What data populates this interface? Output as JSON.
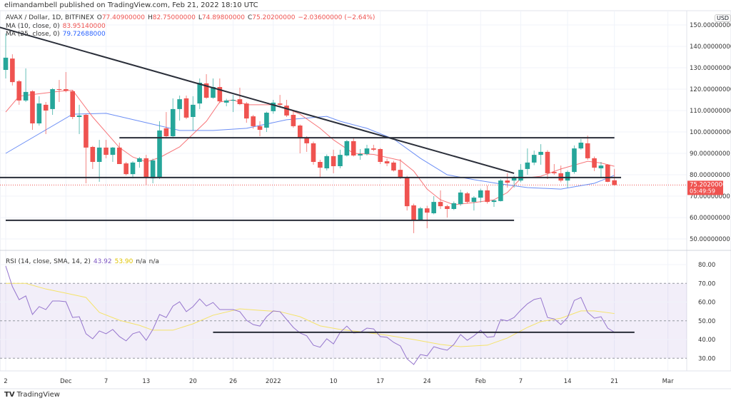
{
  "published": "elimandambell published on TradingView.com, Feb 21, 2022 18:10 UTC",
  "legend": {
    "symbol": "AVAX / Dollar, 1D, BITFINEX",
    "open_label": "O",
    "open": "77.40900000",
    "high_label": "H",
    "high": "82.75000000",
    "low_label": "L",
    "low": "74.89800000",
    "close_label": "C",
    "close": "75.20200000",
    "change": "−2.03600000 (−2.64%)",
    "ma10_label": "MA (10, close, 0)",
    "ma10_value": "83.95140000",
    "ma25_label": "MA (25, close, 0)",
    "ma25_value": "79.72688000"
  },
  "rsi_legend": {
    "label": "RSI (14, close, SMA, 14, 2)",
    "rsi": "43.92",
    "sma": "53.90",
    "na1": "n/a",
    "na2": "n/a"
  },
  "currency": "USD",
  "price_axis": [
    "150.00000000",
    "140.00000000",
    "130.00000000",
    "120.00000000",
    "110.00000000",
    "100.00000000",
    "90.00000000",
    "80.00000000",
    "70.00000000",
    "60.00000000",
    "50.00000000"
  ],
  "price_ticks": [
    150,
    140,
    130,
    120,
    110,
    100,
    90,
    80,
    70,
    60,
    50
  ],
  "current_price": {
    "value": 75.202,
    "label": "75.20200000",
    "countdown": "05:49:59"
  },
  "rsi_axis": {
    "ticks": [
      80,
      70,
      60,
      50,
      40,
      30
    ],
    "labels": [
      "80.00",
      "70.00",
      "60.00",
      "50.00",
      "40.00",
      "30.00"
    ],
    "band": [
      30,
      70
    ]
  },
  "date_axis": [
    {
      "date": "2021-11-22",
      "label": "2"
    },
    {
      "date": "2021-12-01",
      "label": "Dec"
    },
    {
      "date": "2021-12-07",
      "label": "7"
    },
    {
      "date": "2021-12-13",
      "label": "13"
    },
    {
      "date": "2021-12-20",
      "label": "20"
    },
    {
      "date": "2021-12-26",
      "label": "26"
    },
    {
      "date": "2022-01-01",
      "label": "2022"
    },
    {
      "date": "2022-01-10",
      "label": "10"
    },
    {
      "date": "2022-01-17",
      "label": "17"
    },
    {
      "date": "2022-01-24",
      "label": "24"
    },
    {
      "date": "2022-02-01",
      "label": "Feb"
    },
    {
      "date": "2022-02-07",
      "label": "7"
    },
    {
      "date": "2022-02-14",
      "label": "14"
    },
    {
      "date": "2022-02-21",
      "label": "21"
    },
    {
      "date": "2022-03-01",
      "label": "Mar"
    }
  ],
  "colors": {
    "up": "#26a69a",
    "down": "#ef5350",
    "ma10": "#f7767a",
    "ma25": "#6b8ef5",
    "rsi": "#9575cd",
    "rsi_sma": "#f5e36a",
    "trendline": "#2a2e39"
  },
  "chart_data": {
    "type": "candlestick",
    "candles_fields": [
      "date",
      "open",
      "high",
      "low",
      "close"
    ],
    "candles": [
      [
        "2021-11-22",
        129,
        146,
        125,
        134.7
      ],
      [
        "2021-11-23",
        134.3,
        136.3,
        121.7,
        123.3
      ],
      [
        "2021-11-24",
        123.7,
        124.3,
        112.7,
        114.7
      ],
      [
        "2021-11-25",
        114.7,
        129.7,
        114,
        118.7
      ],
      [
        "2021-11-26",
        119,
        119.5,
        101,
        104
      ],
      [
        "2021-11-27",
        104,
        116.7,
        103,
        113.3
      ],
      [
        "2021-11-28",
        112.7,
        114,
        99,
        110
      ],
      [
        "2021-11-29",
        110.7,
        120.5,
        108,
        120
      ],
      [
        "2021-11-30",
        120,
        124.3,
        114,
        119.7
      ],
      [
        "2021-12-01",
        120,
        128,
        118.5,
        119.3
      ],
      [
        "2021-12-02",
        119,
        119.5,
        106,
        107
      ],
      [
        "2021-12-03",
        107,
        112.7,
        99,
        107.7
      ],
      [
        "2021-12-04",
        108,
        108.5,
        76,
        92.7
      ],
      [
        "2021-12-05",
        93,
        93.5,
        82.7,
        86
      ],
      [
        "2021-12-06",
        86,
        96.3,
        76.7,
        92.7
      ],
      [
        "2021-12-07",
        92.7,
        96.3,
        87.7,
        89.3
      ],
      [
        "2021-12-08",
        89.3,
        93,
        86,
        92.7
      ],
      [
        "2021-12-09",
        92.7,
        95,
        85,
        85
      ],
      [
        "2021-12-10",
        85.3,
        86,
        79.7,
        80.3
      ],
      [
        "2021-12-11",
        80.3,
        86.3,
        78.3,
        85.7
      ],
      [
        "2021-12-12",
        86,
        88.3,
        83.3,
        87.7
      ],
      [
        "2021-12-13",
        87.7,
        89.3,
        75.3,
        78.7
      ],
      [
        "2021-12-14",
        78.3,
        87.5,
        76,
        86.7
      ],
      [
        "2021-12-15",
        78.7,
        105,
        78,
        100.7
      ],
      [
        "2021-12-16",
        101.7,
        109.3,
        97.5,
        98
      ],
      [
        "2021-12-17",
        98,
        115.7,
        97.5,
        110.7
      ],
      [
        "2021-12-18",
        110.7,
        117,
        105.3,
        115.3
      ],
      [
        "2021-12-19",
        115.7,
        117,
        106,
        106.7
      ],
      [
        "2021-12-20",
        107,
        116.7,
        100.7,
        112.7
      ],
      [
        "2021-12-21",
        113.3,
        125,
        110.7,
        123
      ],
      [
        "2021-12-22",
        122.7,
        127,
        115.5,
        116
      ],
      [
        "2021-12-23",
        116,
        125,
        115.5,
        121
      ],
      [
        "2021-12-24",
        121,
        125,
        113.5,
        114.3
      ],
      [
        "2021-12-25",
        113.7,
        115.5,
        112,
        114.7
      ],
      [
        "2021-12-26",
        114.6,
        117.3,
        109.3,
        115
      ],
      [
        "2021-12-27",
        115.3,
        120.7,
        112.5,
        113
      ],
      [
        "2021-12-28",
        113.3,
        114,
        104.3,
        106.3
      ],
      [
        "2021-12-29",
        107.3,
        108,
        101.5,
        102.7
      ],
      [
        "2021-12-30",
        102.7,
        105,
        98,
        101
      ],
      [
        "2021-12-31",
        102,
        109.5,
        100,
        109
      ],
      [
        "2022-01-01",
        109.7,
        115,
        108.5,
        113.7
      ],
      [
        "2022-01-02",
        113.3,
        117.3,
        112,
        112.7
      ],
      [
        "2022-01-03",
        112.3,
        115,
        107,
        107.7
      ],
      [
        "2022-01-04",
        108,
        109.7,
        102,
        102.7
      ],
      [
        "2022-01-05",
        103,
        103.5,
        90,
        97
      ],
      [
        "2022-01-06",
        97,
        98,
        90.7,
        94.7
      ],
      [
        "2022-01-07",
        94.7,
        95.5,
        84.7,
        86
      ],
      [
        "2022-01-08",
        86,
        87,
        79,
        83.3
      ],
      [
        "2022-01-09",
        83,
        89.5,
        82,
        88.7
      ],
      [
        "2022-01-10",
        88.7,
        91.7,
        80.7,
        84
      ],
      [
        "2022-01-11",
        84,
        91.7,
        83,
        89.3
      ],
      [
        "2022-01-12",
        89,
        96.3,
        88.5,
        95.7
      ],
      [
        "2022-01-13",
        95.7,
        97,
        88.5,
        89
      ],
      [
        "2022-01-14",
        89,
        92,
        87,
        89.7
      ],
      [
        "2022-01-15",
        89.7,
        94,
        89,
        92.3
      ],
      [
        "2022-01-16",
        92.3,
        94,
        91,
        91.7
      ],
      [
        "2022-01-17",
        92,
        92.5,
        85,
        86
      ],
      [
        "2022-01-18",
        86.3,
        87.5,
        84,
        85.3
      ],
      [
        "2022-01-19",
        85.7,
        86.5,
        81.5,
        82
      ],
      [
        "2022-01-20",
        82.3,
        87.3,
        78,
        78.7
      ],
      [
        "2022-01-21",
        78.7,
        79.5,
        63.3,
        65.3
      ],
      [
        "2022-01-22",
        65.7,
        66.5,
        52.7,
        59
      ],
      [
        "2022-01-23",
        59,
        65,
        58.5,
        64.3
      ],
      [
        "2022-01-24",
        64.3,
        65.5,
        55,
        62.3
      ],
      [
        "2022-01-25",
        62,
        70,
        61.5,
        67.3
      ],
      [
        "2022-01-26",
        67.3,
        72.7,
        64,
        65.3
      ],
      [
        "2022-01-27",
        65.3,
        66,
        60,
        64
      ],
      [
        "2022-01-28",
        64,
        67.5,
        63.5,
        66.7
      ],
      [
        "2022-01-29",
        66.3,
        73,
        65.5,
        71.7
      ],
      [
        "2022-01-30",
        71.3,
        72,
        66.5,
        67.3
      ],
      [
        "2022-01-31",
        67.3,
        70,
        63.3,
        69.3
      ],
      [
        "2022-02-01",
        69.3,
        73.5,
        67,
        72.7
      ],
      [
        "2022-02-02",
        72.7,
        75,
        66.5,
        67.3
      ],
      [
        "2022-02-03",
        67.3,
        68.5,
        65,
        68
      ],
      [
        "2022-02-04",
        67.7,
        78,
        67.5,
        77.3
      ],
      [
        "2022-02-05",
        77.3,
        80.7,
        74,
        76.3
      ],
      [
        "2022-02-06",
        77.3,
        79.5,
        74,
        78.7
      ],
      [
        "2022-02-07",
        77.3,
        85,
        76.5,
        82.3
      ],
      [
        "2022-02-08",
        82.7,
        92.3,
        80,
        85.7
      ],
      [
        "2022-02-09",
        85.7,
        91.3,
        84.5,
        89.3
      ],
      [
        "2022-02-10",
        89.3,
        94.3,
        84.7,
        90.7
      ],
      [
        "2022-02-11",
        90.7,
        91.5,
        78,
        80.7
      ],
      [
        "2022-02-12",
        81.3,
        85,
        80,
        80.7
      ],
      [
        "2022-02-13",
        80.7,
        84.3,
        76.5,
        77.3
      ],
      [
        "2022-02-14",
        77.3,
        82,
        74,
        81.3
      ],
      [
        "2022-02-15",
        81.3,
        93.7,
        80.5,
        92.3
      ],
      [
        "2022-02-16",
        92.3,
        96.7,
        91.7,
        95
      ],
      [
        "2022-02-17",
        94.7,
        98.3,
        87,
        87.7
      ],
      [
        "2022-02-18",
        87.7,
        88.5,
        81.7,
        83.3
      ],
      [
        "2022-02-19",
        83,
        86,
        78.7,
        84.3
      ],
      [
        "2022-02-20",
        84.7,
        85,
        76.5,
        76.7
      ],
      [
        "2022-02-21",
        77.409,
        82.75,
        74.898,
        75.202
      ]
    ],
    "ma10": [
      [
        "2021-11-22",
        109.3
      ],
      [
        "2021-11-24",
        116.7
      ],
      [
        "2021-11-30",
        119
      ],
      [
        "2021-12-02",
        119.5
      ],
      [
        "2021-12-05",
        107
      ],
      [
        "2021-12-09",
        92.7
      ],
      [
        "2021-12-11",
        88.3
      ],
      [
        "2021-12-13",
        86
      ],
      [
        "2021-12-15",
        88
      ],
      [
        "2021-12-18",
        93
      ],
      [
        "2021-12-19",
        96
      ],
      [
        "2021-12-22",
        105
      ],
      [
        "2021-12-24",
        114
      ],
      [
        "2021-12-26",
        115
      ],
      [
        "2021-12-28",
        112.7
      ],
      [
        "2022-01-01",
        112.7
      ],
      [
        "2022-01-03",
        111
      ],
      [
        "2022-01-05",
        108.3
      ],
      [
        "2022-01-08",
        101.7
      ],
      [
        "2022-01-10",
        96.3
      ],
      [
        "2022-01-13",
        90
      ],
      [
        "2022-01-16",
        89.5
      ],
      [
        "2022-01-20",
        86.7
      ],
      [
        "2022-01-22",
        81.7
      ],
      [
        "2022-01-24",
        73.3
      ],
      [
        "2022-01-26",
        68.3
      ],
      [
        "2022-01-28",
        66
      ],
      [
        "2022-01-31",
        67
      ],
      [
        "2022-02-03",
        68.3
      ],
      [
        "2022-02-05",
        71.7
      ],
      [
        "2022-02-07",
        78.3
      ],
      [
        "2022-02-10",
        79.3
      ],
      [
        "2022-02-13",
        82.7
      ],
      [
        "2022-02-15",
        84.5
      ],
      [
        "2022-02-17",
        86.3
      ],
      [
        "2022-02-19",
        85.5
      ],
      [
        "2022-02-21",
        83.95
      ]
    ],
    "ma25": [
      [
        "2021-11-22",
        90
      ],
      [
        "2021-12-02",
        108.3
      ],
      [
        "2021-12-07",
        108.7
      ],
      [
        "2021-12-18",
        100.7
      ],
      [
        "2021-12-23",
        100.7
      ],
      [
        "2021-12-28",
        101.7
      ],
      [
        "2022-01-03",
        105.7
      ],
      [
        "2022-01-09",
        107.3
      ],
      [
        "2022-01-11",
        105
      ],
      [
        "2022-01-15",
        101.7
      ],
      [
        "2022-01-19",
        96.7
      ],
      [
        "2022-01-23",
        87.7
      ],
      [
        "2022-01-27",
        80
      ],
      [
        "2022-01-31",
        77.7
      ],
      [
        "2022-02-04",
        75.7
      ],
      [
        "2022-02-08",
        74
      ],
      [
        "2022-02-13",
        73.3
      ],
      [
        "2022-02-18",
        76
      ],
      [
        "2022-02-21",
        79.73
      ]
    ],
    "rsi": [
      79.3,
      68.3,
      61.3,
      63.3,
      53.4,
      57.6,
      56,
      60.6,
      60.6,
      60.2,
      51.8,
      52.2,
      43.1,
      40.4,
      44.6,
      43.1,
      45.4,
      41.6,
      39.3,
      43.1,
      44.2,
      39.6,
      45.4,
      53.4,
      51.8,
      57.9,
      60.2,
      54.9,
      57.6,
      61.7,
      57.9,
      59.8,
      56,
      56,
      56,
      54.9,
      50.3,
      48,
      47.2,
      52.2,
      55.3,
      54.9,
      50.7,
      46.5,
      43.5,
      42,
      37,
      35.9,
      40.4,
      37.7,
      43.8,
      47.2,
      43.5,
      43.8,
      46.1,
      45.7,
      41.6,
      41.2,
      38.5,
      36.6,
      29.7,
      26.7,
      32,
      31.3,
      36.2,
      35.1,
      34.3,
      37.4,
      42.7,
      39.6,
      42,
      45,
      41.2,
      41.6,
      50.7,
      50,
      51.8,
      55.7,
      59.1,
      61.4,
      62.2,
      51.8,
      51,
      48,
      51.8,
      60.9,
      62.5,
      54.5,
      51.4,
      52.2,
      46.1,
      43.92
    ],
    "rsi_sma": [
      [
        "2021-11-22",
        70
      ],
      [
        "2021-11-25",
        70
      ],
      [
        "2021-11-28",
        67
      ],
      [
        "2021-12-01",
        64.8
      ],
      [
        "2021-12-04",
        62.5
      ],
      [
        "2021-12-06",
        54.5
      ],
      [
        "2021-12-09",
        50.3
      ],
      [
        "2021-12-12",
        47.6
      ],
      [
        "2021-12-14",
        45
      ],
      [
        "2021-12-17",
        45
      ],
      [
        "2021-12-20",
        48.4
      ],
      [
        "2021-12-23",
        53
      ],
      [
        "2021-12-27",
        56.4
      ],
      [
        "2021-12-30",
        55.6
      ],
      [
        "2022-01-02",
        54.9
      ],
      [
        "2022-01-05",
        52.2
      ],
      [
        "2022-01-08",
        47.3
      ],
      [
        "2022-01-11",
        45.4
      ],
      [
        "2022-01-14",
        44.2
      ],
      [
        "2022-01-18",
        42.3
      ],
      [
        "2022-01-22",
        40
      ],
      [
        "2022-01-26",
        37.4
      ],
      [
        "2022-01-29",
        36.2
      ],
      [
        "2022-02-02",
        37
      ],
      [
        "2022-02-05",
        40.8
      ],
      [
        "2022-02-08",
        46.5
      ],
      [
        "2022-02-10",
        49.6
      ],
      [
        "2022-02-13",
        51.4
      ],
      [
        "2022-02-16",
        55.3
      ],
      [
        "2022-02-18",
        55.3
      ],
      [
        "2022-02-21",
        53.9
      ]
    ],
    "price_range": [
      50,
      150
    ],
    "rsi_range": [
      20,
      85
    ],
    "trendlines": [
      {
        "from": [
          "2021-11-21",
          149
        ],
        "to": [
          "2022-02-06",
          80.7
        ]
      },
      {
        "from": [
          "2021-12-09",
          97.3
        ],
        "to": [
          "2022-02-21",
          97.3
        ]
      },
      {
        "from": [
          "2021-11-21",
          78.7
        ],
        "to": [
          "2022-02-22",
          78.7
        ]
      },
      {
        "from": [
          "2021-11-22",
          58.7
        ],
        "to": [
          "2022-02-06",
          58.7
        ]
      }
    ],
    "rsi_trendline": {
      "from": [
        "2021-12-23",
        43.9
      ],
      "to": [
        "2022-02-24",
        43.9
      ]
    }
  },
  "footer": {
    "logo": "TV",
    "brand": "TradingView"
  }
}
